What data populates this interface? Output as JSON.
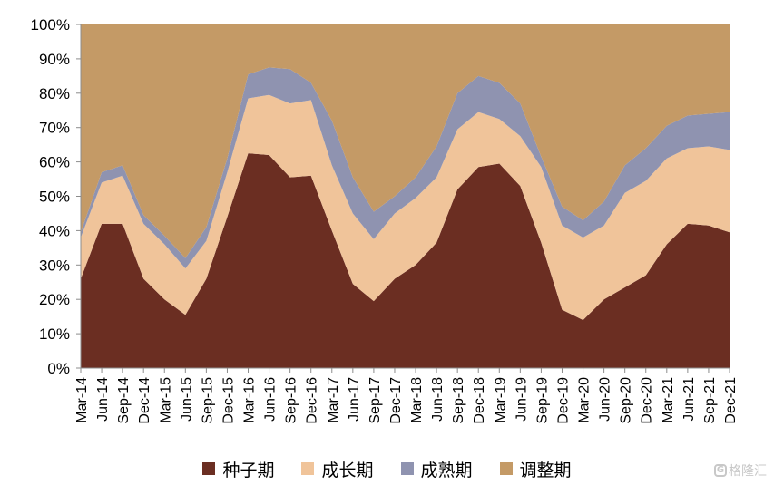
{
  "chart_data": {
    "type": "area",
    "stacked": true,
    "percent": true,
    "title": "",
    "xlabel": "",
    "ylabel": "",
    "ylim": [
      0,
      100
    ],
    "yticks": [
      "0%",
      "10%",
      "20%",
      "30%",
      "40%",
      "50%",
      "60%",
      "70%",
      "80%",
      "90%",
      "100%"
    ],
    "categories": [
      "Mar-14",
      "Jun-14",
      "Sep-14",
      "Dec-14",
      "Mar-15",
      "Jun-15",
      "Sep-15",
      "Dec-15",
      "Mar-16",
      "Jun-16",
      "Sep-16",
      "Dec-16",
      "Mar-17",
      "Jun-17",
      "Sep-17",
      "Dec-17",
      "Mar-18",
      "Jun-18",
      "Sep-18",
      "Dec-18",
      "Mar-19",
      "Jun-19",
      "Sep-19",
      "Dec-19",
      "Mar-20",
      "Jun-20",
      "Sep-20",
      "Dec-20",
      "Mar-21",
      "Jun-21",
      "Sep-21",
      "Dec-21"
    ],
    "series": [
      {
        "name": "种子期",
        "color": "#6b2e22",
        "values": [
          26,
          42,
          42,
          26,
          20,
          15.5,
          26,
          44,
          62.5,
          62,
          55.5,
          56,
          40,
          24.5,
          19.5,
          26,
          30,
          36.5,
          52,
          58.5,
          59.5,
          53,
          36.5,
          17,
          14,
          20,
          23.5,
          27,
          36,
          42,
          41.5,
          39.5
        ]
      },
      {
        "name": "成长期",
        "color": "#f0c49a",
        "values": [
          12,
          12,
          14,
          16,
          16,
          13.5,
          11,
          13,
          16,
          17.5,
          21.5,
          22,
          19,
          20.5,
          18,
          19,
          19.5,
          19,
          17.5,
          16,
          13,
          14.5,
          22,
          24.5,
          24,
          21.5,
          27.5,
          27.5,
          25,
          22,
          23,
          24
        ]
      },
      {
        "name": "成熟期",
        "color": "#8f93b0",
        "values": [
          1.5,
          3,
          3,
          2.5,
          2.5,
          3,
          4,
          4,
          7,
          8,
          10,
          5,
          13,
          10.5,
          8,
          5,
          6,
          9,
          10.5,
          10.5,
          10.5,
          9.5,
          3,
          5.5,
          5,
          7,
          8,
          9.5,
          9.5,
          9.5,
          9.5,
          11
        ]
      },
      {
        "name": "调整期",
        "color": "#c49a66",
        "values": [
          60.5,
          43,
          41,
          55.5,
          61.5,
          68,
          59,
          39,
          14.5,
          12.5,
          13,
          17,
          28,
          44.5,
          54.5,
          50,
          44.5,
          35.5,
          20,
          15,
          17,
          23,
          38.5,
          53,
          57,
          51.5,
          41,
          36,
          29.5,
          26.5,
          26,
          25.5
        ]
      }
    ],
    "legend_position": "bottom",
    "grid": false
  },
  "watermark": {
    "icon": "G",
    "text": "格隆汇"
  }
}
